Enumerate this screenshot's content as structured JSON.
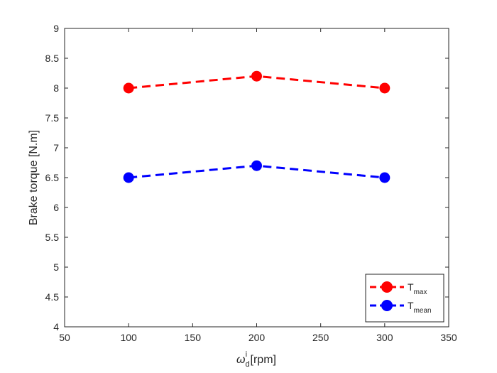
{
  "chart_data": {
    "type": "line",
    "title": "",
    "xlabel": {
      "symbol": "ω",
      "sub": "d",
      "sup": "i",
      "unit": " [rpm]"
    },
    "ylabel": "Brake torque [N.m]",
    "xlim": [
      50,
      350
    ],
    "ylim": [
      4,
      9
    ],
    "xticks": [
      50,
      100,
      150,
      200,
      250,
      300,
      350
    ],
    "yticks": [
      4,
      4.5,
      5,
      5.5,
      6,
      6.5,
      7,
      7.5,
      8,
      8.5,
      9
    ],
    "x": [
      100,
      200,
      300
    ],
    "series": [
      {
        "name": {
          "main": "T",
          "sub": "max"
        },
        "values": [
          8.0,
          8.2,
          8.0
        ],
        "color": "#ff0000"
      },
      {
        "name": {
          "main": "T",
          "sub": "mean"
        },
        "values": [
          6.5,
          6.7,
          6.5
        ],
        "color": "#0000ff"
      }
    ],
    "grid": false,
    "legend": "bottom-right"
  }
}
